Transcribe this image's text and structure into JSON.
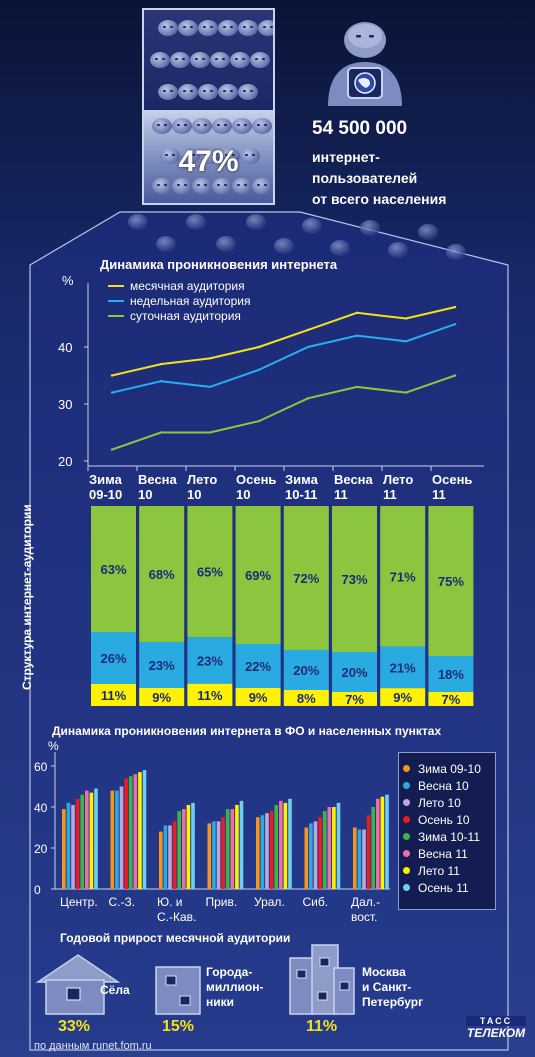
{
  "header": {
    "crowd_percent": "47%",
    "users_count": "54 500 000",
    "users_line1": "интернет-",
    "users_line2": "пользователей",
    "users_line3": "от всего населения"
  },
  "penetration": {
    "title": "Динамика проникновения интернета",
    "y_unit": "%",
    "yticks": [
      "20",
      "30",
      "40"
    ],
    "categories": [
      [
        "Зима",
        "09-10"
      ],
      [
        "Весна",
        "10"
      ],
      [
        "Лето",
        "10"
      ],
      [
        "Осень",
        "10"
      ],
      [
        "Зима",
        "10-11"
      ],
      [
        "Весна",
        "11"
      ],
      [
        "Лето",
        "11"
      ],
      [
        "Осень",
        "11"
      ]
    ],
    "legend": [
      "месячная аудитория",
      "недельная аудитория",
      "суточная аудитория"
    ]
  },
  "structure": {
    "side_label": "Структура интернет-аудитории",
    "bars": [
      {
        "top": "63%",
        "mid": "26%",
        "bot": "11%"
      },
      {
        "top": "68%",
        "mid": "23%",
        "bot": "9%"
      },
      {
        "top": "65%",
        "mid": "23%",
        "bot": "11%"
      },
      {
        "top": "69%",
        "mid": "22%",
        "bot": "9%"
      },
      {
        "top": "72%",
        "mid": "20%",
        "bot": "8%"
      },
      {
        "top": "73%",
        "mid": "20%",
        "bot": "7%"
      },
      {
        "top": "71%",
        "mid": "21%",
        "bot": "9%"
      },
      {
        "top": "75%",
        "mid": "18%",
        "bot": "7%"
      }
    ]
  },
  "regions": {
    "title": "Динамика проникновения интернета в ФО и населенных пунктах",
    "y_unit": "%",
    "yticks": [
      "0",
      "20",
      "40",
      "60"
    ],
    "groups": [
      [
        "Центр."
      ],
      [
        "С.-З."
      ],
      [
        "Ю. и",
        "С.-Кав."
      ],
      [
        "Прив."
      ],
      [
        "Урал."
      ],
      [
        "Сиб."
      ],
      [
        "Дал.-",
        "вост."
      ]
    ],
    "legend": [
      "Зима 09-10",
      "Весна 10",
      "Лето 10",
      "Осень 10",
      "Зима 10-11",
      "Весна 11",
      "Лето 11",
      "Осень 11"
    ]
  },
  "growth": {
    "title": "Годовой прирост месячной аудитории",
    "items": [
      {
        "label_lines": [
          "Сёла"
        ],
        "value": "33%"
      },
      {
        "label_lines": [
          "Города-",
          "миллион-",
          "ники"
        ],
        "value": "15%"
      },
      {
        "label_lines": [
          "Москва",
          "и Санкт-",
          "Петербург"
        ],
        "value": "11%"
      }
    ]
  },
  "footer": {
    "source": "по данным runet.fom.ru",
    "logo_small": "ТАСС",
    "logo_big": "ТЕЛЕКОМ"
  },
  "colors": {
    "month_line": "#f4e21a",
    "week_line": "#25aef0",
    "day_line": "#8fc63f",
    "bar_green": "#8cc63f",
    "bar_blue": "#29abe2",
    "bar_yellow": "#fff200",
    "pct_text": "#1b2a78",
    "growth_value": "#f2e21b",
    "region_series": [
      "#f7941d",
      "#29abe2",
      "#c0a6d8",
      "#ed1c24",
      "#39b54a",
      "#ee6fa6",
      "#fff200",
      "#6dcff6"
    ]
  },
  "chart_data": [
    {
      "type": "line",
      "title": "Динамика проникновения интернета",
      "ylabel": "%",
      "ylim": [
        20,
        48
      ],
      "categories": [
        "Зима 09-10",
        "Весна 10",
        "Лето 10",
        "Осень 10",
        "Зима 10-11",
        "Весна 11",
        "Лето 11",
        "Осень 11"
      ],
      "series": [
        {
          "name": "месячная аудитория",
          "values": [
            35,
            37,
            38,
            40,
            43,
            46,
            45,
            47
          ]
        },
        {
          "name": "недельная аудитория",
          "values": [
            32,
            34,
            33,
            36,
            40,
            42,
            41,
            44
          ]
        },
        {
          "name": "суточная аудитория",
          "values": [
            22,
            25,
            25,
            27,
            31,
            33,
            32,
            35
          ]
        }
      ]
    },
    {
      "type": "bar",
      "stacked": true,
      "categories": [
        "Зима 09-10",
        "Весна 10",
        "Лето 10",
        "Осень 10",
        "Зима 10-11",
        "Весна 11",
        "Лето 11",
        "Осень 11"
      ],
      "series": [
        {
          "values": [
            63,
            68,
            65,
            69,
            72,
            73,
            71,
            75
          ]
        },
        {
          "values": [
            26,
            23,
            23,
            22,
            20,
            20,
            21,
            18
          ]
        },
        {
          "values": [
            11,
            9,
            11,
            9,
            8,
            7,
            9,
            7
          ]
        }
      ]
    },
    {
      "type": "bar",
      "title": "Динамика проникновения интернета в ФО и населенных пунктах",
      "ylabel": "%",
      "ylim": [
        0,
        65
      ],
      "categories": [
        "Центр.",
        "С.-З.",
        "Ю. и С.-Кав.",
        "Прив.",
        "Урал.",
        "Сиб.",
        "Дал.-вост."
      ],
      "series": [
        {
          "name": "Зима 09-10",
          "values": [
            39,
            48,
            28,
            32,
            35,
            30,
            30
          ]
        },
        {
          "name": "Весна 10",
          "values": [
            42,
            48,
            31,
            33,
            36,
            32,
            29
          ]
        },
        {
          "name": "Лето 10",
          "values": [
            41,
            50,
            31,
            33,
            37,
            33,
            29
          ]
        },
        {
          "name": "Осень 10",
          "values": [
            44,
            54,
            33,
            35,
            38,
            35,
            36
          ]
        },
        {
          "name": "Зима 10-11",
          "values": [
            46,
            55,
            38,
            39,
            41,
            38,
            40
          ]
        },
        {
          "name": "Весна 11",
          "values": [
            48,
            56,
            39,
            39,
            43,
            40,
            44
          ]
        },
        {
          "name": "Лето 11",
          "values": [
            47,
            57,
            41,
            41,
            42,
            40,
            45
          ]
        },
        {
          "name": "Осень 11",
          "values": [
            49,
            58,
            42,
            43,
            44,
            42,
            46
          ]
        }
      ]
    },
    {
      "type": "bar",
      "title": "Годовой прирост месячной аудитории",
      "categories": [
        "Сёла",
        "Города-миллионники",
        "Москва и Санкт-Петербург"
      ],
      "values": [
        33,
        15,
        11
      ]
    }
  ]
}
